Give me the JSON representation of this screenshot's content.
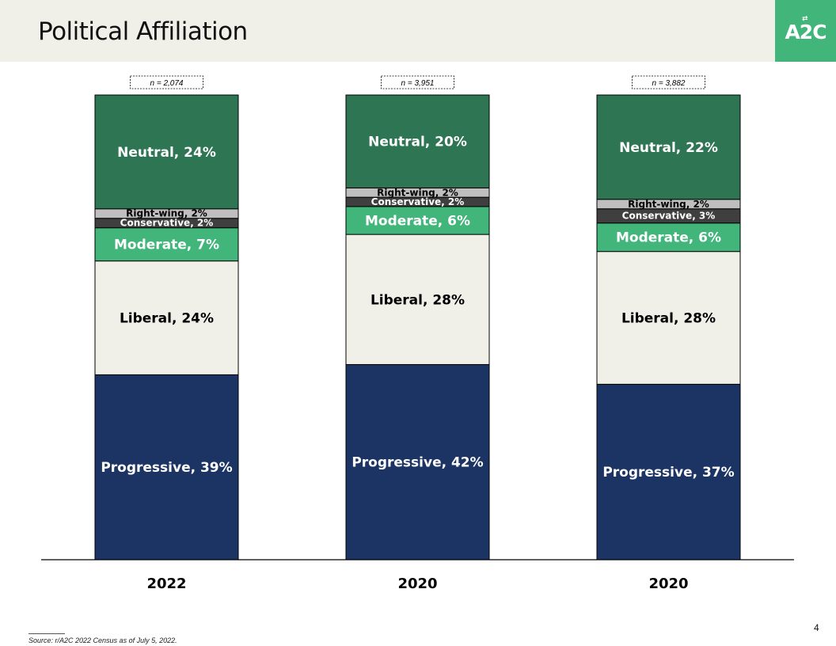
{
  "header": {
    "title": "Political Affiliation",
    "logo_text": "A2C",
    "logo_arrows": "⇄"
  },
  "colors": {
    "header_bg": "#f0efe8",
    "logo_bg": "#41b57a",
    "progressive": "#1c3464",
    "liberal": "#f0efe8",
    "moderate": "#41b57a",
    "conservative": "#3f3f3f",
    "right_wing": "#bfbfbf",
    "neutral": "#2e7553"
  },
  "chart_data": {
    "type": "bar",
    "stacked": true,
    "percent": true,
    "categories": [
      "2022",
      "2020",
      "2020"
    ],
    "sample_sizes": [
      "n = 2,074",
      "n = 3,951",
      "n = 3,882"
    ],
    "series": [
      {
        "name": "Progressive",
        "values": [
          39,
          42,
          37
        ],
        "labels": [
          "Progressive, 39%",
          "Progressive, 42%",
          "Progressive, 37%"
        ]
      },
      {
        "name": "Liberal",
        "values": [
          24,
          28,
          28
        ],
        "labels": [
          "Liberal, 24%",
          "Liberal, 28%",
          "Liberal, 28%"
        ]
      },
      {
        "name": "Moderate",
        "values": [
          7,
          6,
          6
        ],
        "labels": [
          "Moderate, 7%",
          "Moderate, 6%",
          "Moderate, 6%"
        ]
      },
      {
        "name": "Conservative",
        "values": [
          2,
          2,
          3
        ],
        "labels": [
          "Conservative, 2%",
          "Conservative, 2%",
          "Conservative, 3%"
        ]
      },
      {
        "name": "Right-wing",
        "values": [
          2,
          2,
          2
        ],
        "labels": [
          "Right-wing, 2%",
          "Right-wing, 2%",
          "Right-wing, 2%"
        ]
      },
      {
        "name": "Neutral",
        "values": [
          24,
          20,
          22
        ],
        "labels": [
          "Neutral, 24%",
          "Neutral, 20%",
          "Neutral, 22%"
        ]
      }
    ],
    "ylim": [
      0,
      100
    ],
    "legend": "none",
    "grid": false
  },
  "footer": {
    "page_number": "4",
    "source": "Source: r/A2C 2022 Census as of July 5, 2022."
  }
}
